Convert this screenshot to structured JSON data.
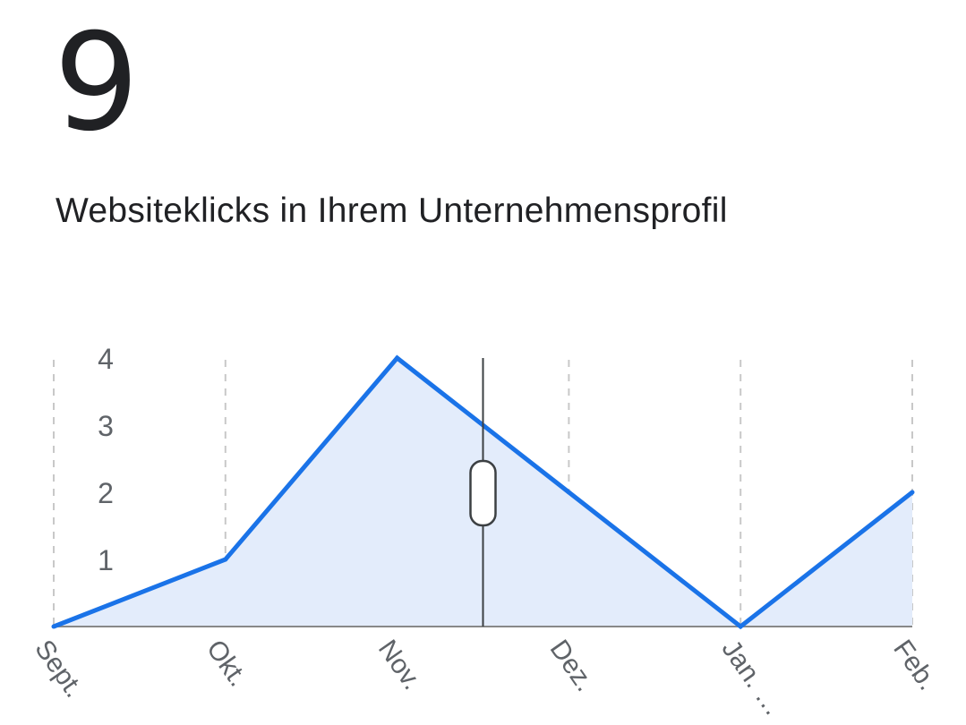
{
  "metric": {
    "value": "9",
    "label": "Websiteklicks in Ihrem Unternehmensprofil"
  },
  "colors": {
    "line": "#1a73e8",
    "area": "#e3ecfb",
    "grid": "#c8c8c8",
    "axis": "#888888",
    "cursor": "#3c4043"
  },
  "chart_data": {
    "type": "area",
    "categories": [
      "Sept.",
      "Okt.",
      "Nov.",
      "Dez.",
      "Jan. …",
      "Feb."
    ],
    "series": [
      {
        "values": [
          0,
          1,
          4,
          2,
          0,
          2
        ]
      }
    ],
    "y_ticks": [
      "1",
      "2",
      "3",
      "4"
    ],
    "ylim": [
      0,
      4
    ],
    "grid": "vertical-dashed",
    "cursor_x": 2.5
  }
}
